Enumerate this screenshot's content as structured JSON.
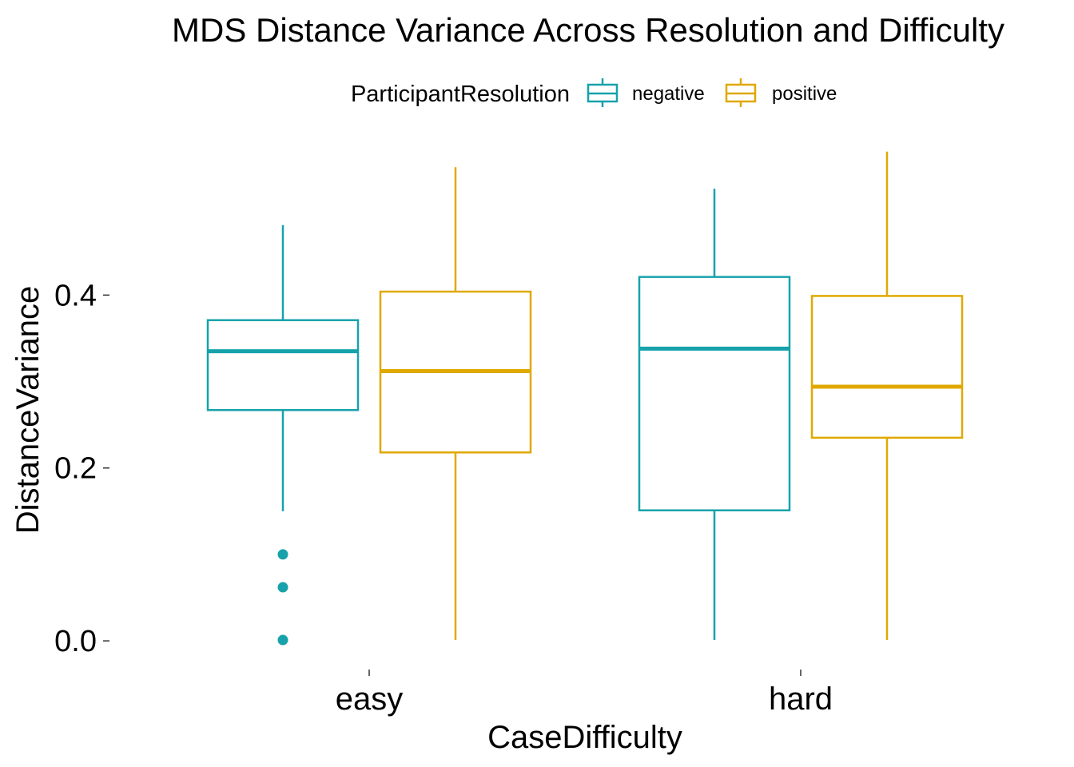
{
  "chart_data": {
    "type": "boxplot",
    "title": "MDS Distance Variance Across Resolution and Difficulty",
    "xlabel": "CaseDifficulty",
    "ylabel": "DistanceVariance",
    "categories": [
      "easy",
      "hard"
    ],
    "ylim": [
      -0.035,
      0.575
    ],
    "yticks": [
      0.0,
      0.2,
      0.4
    ],
    "ytick_labels": [
      "0.0",
      "0.2",
      "0.4"
    ],
    "grid": false,
    "legend": {
      "title": "ParticipantResolution",
      "position": "top",
      "entries": [
        "negative",
        "positive"
      ]
    },
    "colors": {
      "negative": "#17a2ab",
      "positive": "#e0a800"
    },
    "series": [
      {
        "name": "negative",
        "boxes": [
          {
            "category": "easy",
            "whisker_low": 0.15,
            "q1": 0.267,
            "median": 0.335,
            "q3": 0.371,
            "whisker_high": 0.481,
            "outliers": [
              0.1,
              0.062,
              0.001
            ]
          },
          {
            "category": "hard",
            "whisker_low": 0.001,
            "q1": 0.151,
            "median": 0.338,
            "q3": 0.421,
            "whisker_high": 0.523,
            "outliers": []
          }
        ]
      },
      {
        "name": "positive",
        "boxes": [
          {
            "category": "easy",
            "whisker_low": 0.001,
            "q1": 0.218,
            "median": 0.312,
            "q3": 0.404,
            "whisker_high": 0.548,
            "outliers": []
          },
          {
            "category": "hard",
            "whisker_low": 0.001,
            "q1": 0.235,
            "median": 0.294,
            "q3": 0.399,
            "whisker_high": 0.566,
            "outliers": []
          }
        ]
      }
    ]
  }
}
